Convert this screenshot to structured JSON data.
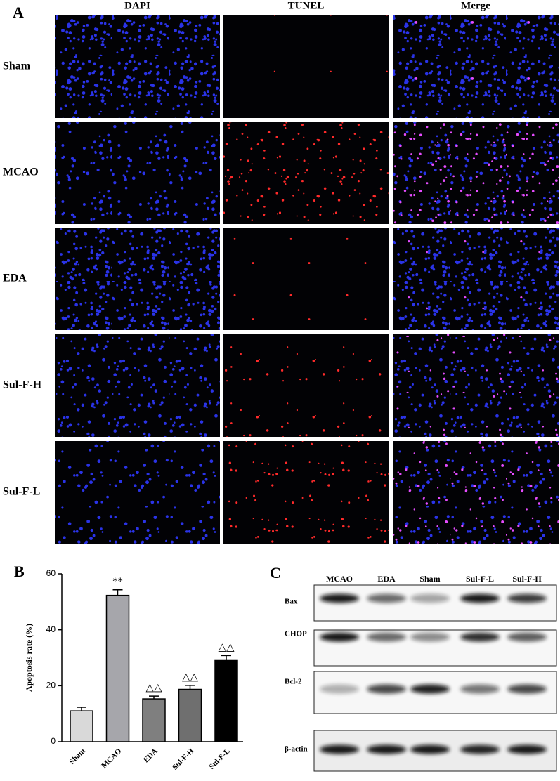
{
  "panel_a": {
    "label": "A",
    "columns": [
      "DAPI",
      "TUNEL",
      "Merge"
    ],
    "rows": [
      "Sham",
      "MCAO",
      "EDA",
      "Sul-F-H",
      "Sul-F-L"
    ]
  },
  "chart_data": {
    "type": "bar",
    "panel_label": "B",
    "y_label": "Apoptosis rate (%)",
    "categories": [
      "Sham",
      "MCAO",
      "EDA",
      "Sul-F-H",
      "Sul-F-L"
    ],
    "values": [
      11,
      52.3,
      15.3,
      18.7,
      29
    ],
    "errors": [
      1.3,
      2,
      1,
      1.4,
      1.8
    ],
    "colors": [
      "#d9d9d9",
      "#a6a6ab",
      "#7f7f7f",
      "#6f6f6f",
      "#000000"
    ],
    "ylim": [
      0,
      60
    ],
    "yticks": [
      0,
      20,
      40,
      60
    ],
    "annotations": [
      {
        "category": "MCAO",
        "text": "**"
      },
      {
        "category": "EDA",
        "text": "△△"
      },
      {
        "category": "Sul-F-H",
        "text": "△△"
      },
      {
        "category": "Sul-F-L",
        "text": "△△"
      }
    ]
  },
  "panel_c": {
    "label": "C",
    "lanes": [
      "MCAO",
      "EDA",
      "Sham",
      "Sul-F-L",
      "Sul-F-H"
    ],
    "proteins": [
      "Bax",
      "CHOP",
      "Bcl-2",
      "β-actin"
    ]
  }
}
